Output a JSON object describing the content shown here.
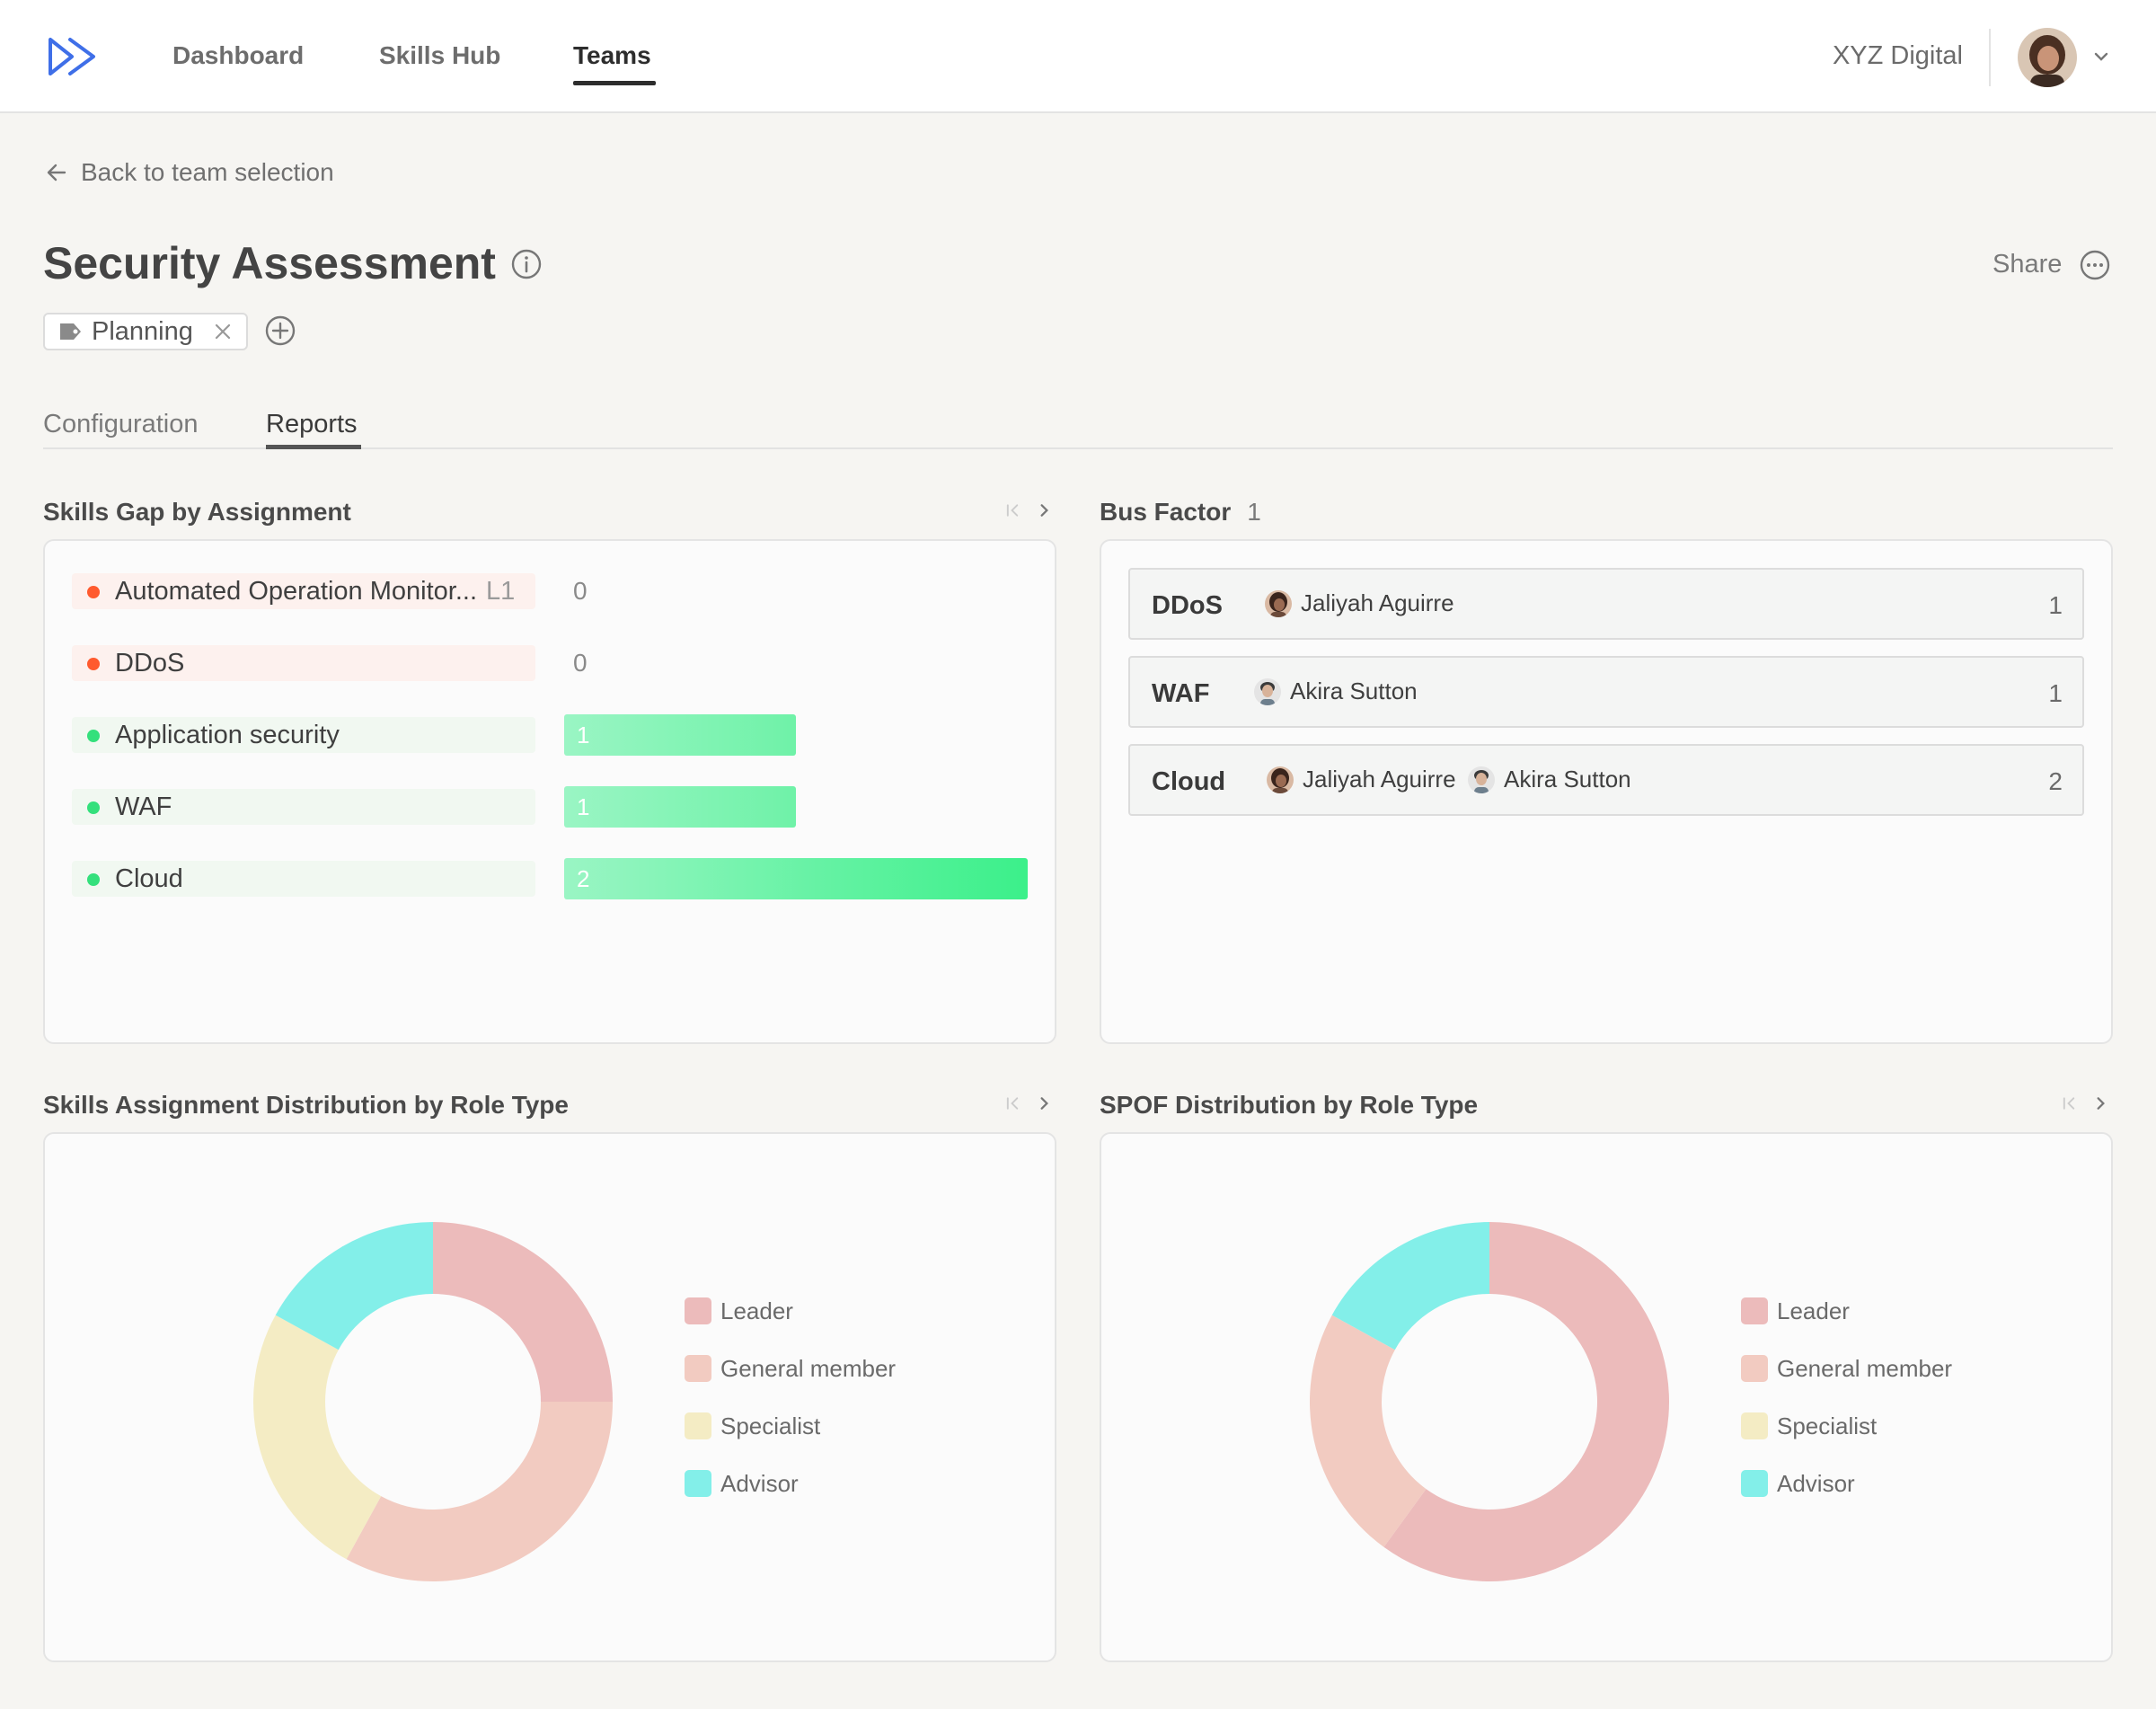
{
  "nav": {
    "items": [
      "Dashboard",
      "Skills Hub",
      "Teams"
    ],
    "active": "Teams",
    "org": "XYZ Digital"
  },
  "back_label": "Back to team selection",
  "page": {
    "title": "Security Assessment",
    "share_label": "Share",
    "tags": [
      "Planning"
    ]
  },
  "tabs": [
    "Configuration",
    "Reports"
  ],
  "active_tab": "Reports",
  "skills_gap": {
    "title": "Skills Gap by Assignment",
    "rows": [
      {
        "label": "Automated Operation Monitor...",
        "level": "L1",
        "value": 0,
        "status_color": "#ff5a2e",
        "bg": "#fdf1ee"
      },
      {
        "label": "DDoS",
        "level": "",
        "value": 0,
        "status_color": "#ff5a2e",
        "bg": "#fdf1ee"
      },
      {
        "label": "Application security",
        "level": "",
        "value": 1,
        "status_color": "#34e07c",
        "bg": "#f1f8f1"
      },
      {
        "label": "WAF",
        "level": "",
        "value": 1,
        "status_color": "#34e07c",
        "bg": "#f1f8f1"
      },
      {
        "label": "Cloud",
        "level": "",
        "value": 2,
        "status_color": "#34e07c",
        "bg": "#f1f8f1"
      }
    ],
    "max_value": 2
  },
  "bus_factor": {
    "title": "Bus Factor",
    "value": "1",
    "rows": [
      {
        "skill": "DDoS",
        "people": [
          "Jaliyah Aguirre"
        ],
        "count": "1"
      },
      {
        "skill": "WAF",
        "people": [
          "Akira Sutton"
        ],
        "count": "1"
      },
      {
        "skill": "Cloud",
        "people": [
          "Jaliyah Aguirre",
          "Akira Sutton"
        ],
        "count": "2"
      }
    ]
  },
  "role_charts": [
    {
      "title": "Skills Assignment Distribution by Role Type",
      "chart_data": {
        "type": "pie",
        "categories": [
          "Leader",
          "General member",
          "Specialist",
          "Advisor"
        ],
        "values": [
          25,
          33,
          25,
          17
        ],
        "colors": [
          "#ecbbbb",
          "#f2cbc1",
          "#f4ecc4",
          "#83efe9"
        ]
      }
    },
    {
      "title": "SPOF Distribution by Role Type",
      "chart_data": {
        "type": "pie",
        "categories": [
          "Leader",
          "General member",
          "Specialist",
          "Advisor"
        ],
        "values": [
          60,
          23,
          0,
          17
        ],
        "colors": [
          "#ecbbbb",
          "#f2cbc1",
          "#f4ecc4",
          "#83efe9"
        ]
      }
    }
  ]
}
